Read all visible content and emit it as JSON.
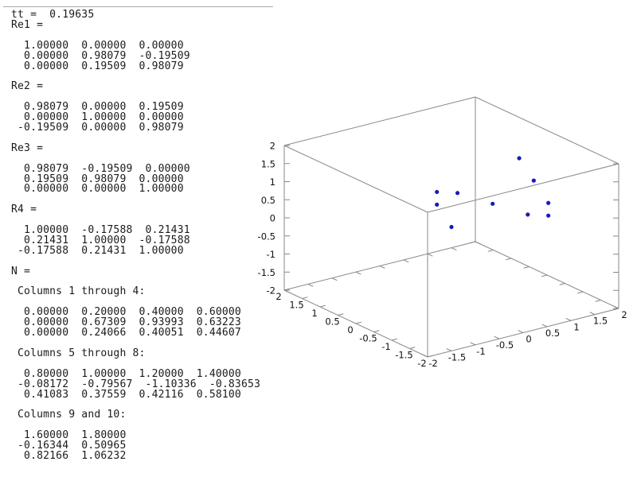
{
  "console": {
    "lines": [
      "tt =  0.19635",
      "Re1 =",
      "",
      "  1.00000  0.00000  0.00000",
      "  0.00000  0.98079  -0.19509",
      "  0.00000  0.19509  0.98079",
      "",
      "Re2 =",
      "",
      "  0.98079  0.00000  0.19509",
      "  0.00000  1.00000  0.00000",
      " -0.19509  0.00000  0.98079",
      "",
      "Re3 =",
      "",
      "  0.98079  -0.19509  0.00000",
      "  0.19509  0.98079  0.00000",
      "  0.00000  0.00000  1.00000",
      "",
      "R4 =",
      "",
      "  1.00000  -0.17588  0.21431",
      "  0.21431  1.00000  -0.17588",
      " -0.17588  0.21431  1.00000",
      "",
      "N =",
      "",
      " Columns 1 through 4:",
      "",
      "  0.00000  0.20000  0.40000  0.60000",
      "  0.00000  0.67309  0.93993  0.63223",
      "  0.00000  0.24066  0.40051  0.44607",
      "",
      " Columns 5 through 8:",
      "",
      "  0.80000  1.00000  1.20000  1.40000",
      " -0.08172  -0.79567  -1.10336  -0.83653",
      "  0.41083  0.37559  0.42116  0.58100",
      "",
      " Columns 9 and 10:",
      "",
      "  1.60000  1.80000",
      " -0.16344  0.50965",
      "  0.82166  1.06232"
    ]
  },
  "chart_data": {
    "type": "scatter",
    "projection": "3d-box",
    "title": "",
    "xlabel": "",
    "ylabel": "",
    "zlabel": "",
    "xlim": [
      -2,
      2
    ],
    "ylim": [
      -2,
      2
    ],
    "zlim": [
      -2,
      2
    ],
    "tick_values": [
      -2,
      -1.5,
      -1,
      -0.5,
      0,
      0.5,
      1,
      1.5,
      2
    ],
    "tick_labels": [
      "-2",
      "-1.5",
      "-1",
      "-0.5",
      "0",
      "0.5",
      "1",
      "1.5",
      "2"
    ],
    "grid": false,
    "legend": null,
    "series": [
      {
        "name": "N",
        "x": [
          0.0,
          0.2,
          0.4,
          0.6,
          0.8,
          1.0,
          1.2,
          1.4,
          1.6,
          1.8
        ],
        "y": [
          0.0,
          0.67309,
          0.93993,
          0.63223,
          -0.08172,
          -0.79567,
          -1.10336,
          -0.83653,
          -0.16344,
          0.50965
        ],
        "z": [
          0.0,
          0.24066,
          0.40051,
          0.44607,
          0.41083,
          0.37559,
          0.42116,
          0.581,
          0.82166,
          1.06232
        ]
      }
    ],
    "marker": {
      "shape": "filled-circle",
      "color": "#1a1ab8",
      "radius": 2.6
    },
    "box_color": "#888888",
    "label_color": "#111111"
  },
  "colors": {
    "background": "#ffffff",
    "console_text": "#1a1a1a",
    "divider": "#a9a9a9"
  }
}
